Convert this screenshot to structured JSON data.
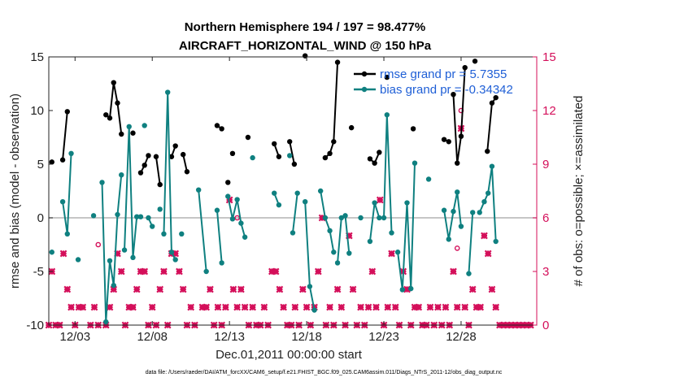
{
  "colors": {
    "rmse": "#000000",
    "bias": "#0f8080",
    "obs": "#d40f5a",
    "zero_line": "#b3b3b3",
    "legend_text": "#1f5fd6"
  },
  "chart_data": {
    "type": "line",
    "title": "Northern Hemisphere 194 / 197 = 98.477%",
    "subtitle": "AIRCRAFT_HORIZONTAL_WIND @ 150 hPa",
    "xlabel": "Dec.01,2011 00:00:00 start",
    "ylabel": "rmse and bias (model - observation)",
    "ylabel_right": "# of obs: o=possible; ×=assimilated",
    "footer": "data file: /Users/raeder/DAI/ATM_forcXX/CAM6_setup/f.e21.FHIST_BGC.f09_025.CAM6assim.011/Diags_NTrS_2011-12/obs_diag_output.nc",
    "xlim": [
      1.3,
      32.9
    ],
    "ylim": [
      -10,
      15
    ],
    "ylim_right": [
      0,
      15
    ],
    "x_ticks": [
      {
        "x": 3,
        "label": "12/03"
      },
      {
        "x": 8,
        "label": "12/08"
      },
      {
        "x": 13,
        "label": "12/13"
      },
      {
        "x": 18,
        "label": "12/18"
      },
      {
        "x": 23,
        "label": "12/23"
      },
      {
        "x": 28,
        "label": "12/28"
      }
    ],
    "y_ticks": [
      -10,
      -5,
      0,
      5,
      10,
      15
    ],
    "y_ticks_right": [
      0,
      3,
      6,
      9,
      12,
      15
    ],
    "legend": [
      {
        "name": "rmse",
        "label": "rmse grand pr = 5.7355"
      },
      {
        "name": "bias",
        "label": "bias grand pr = -0.34342"
      }
    ],
    "series": [
      {
        "name": "rmse",
        "segments": [
          [
            [
              1.5,
              5.2
            ]
          ],
          [
            [
              2.2,
              5.4
            ],
            [
              2.5,
              9.9
            ]
          ],
          [
            [
              5.0,
              9.6
            ],
            [
              5.25,
              9.3
            ],
            [
              5.5,
              12.6
            ],
            [
              5.75,
              10.7
            ],
            [
              6.0,
              7.8
            ]
          ],
          [
            [
              6.75,
              7.9
            ]
          ],
          [
            [
              7.25,
              4.2
            ],
            [
              7.5,
              4.9
            ],
            [
              7.75,
              5.8
            ]
          ],
          [
            [
              8.25,
              5.7
            ],
            [
              8.5,
              3.1
            ]
          ],
          [
            [
              9.25,
              5.7
            ],
            [
              9.5,
              6.7
            ]
          ],
          [
            [
              10.0,
              5.9
            ],
            [
              10.25,
              4.3
            ]
          ],
          [
            [
              12.2,
              8.6
            ],
            [
              12.5,
              8.3
            ]
          ],
          [
            [
              12.9,
              3.3
            ]
          ],
          [
            [
              13.2,
              6.0
            ]
          ],
          [
            [
              14.2,
              7.5
            ]
          ],
          [
            [
              15.9,
              6.9
            ],
            [
              16.2,
              5.7
            ]
          ],
          [
            [
              16.9,
              7.1
            ],
            [
              17.2,
              5.0
            ]
          ],
          [
            [
              17.9,
              15.1
            ]
          ],
          [
            [
              19.2,
              5.6
            ],
            [
              19.5,
              6.0
            ],
            [
              19.75,
              7.1
            ],
            [
              20.0,
              14.5
            ]
          ],
          [
            [
              20.9,
              8.4
            ]
          ],
          [
            [
              22.1,
              5.5
            ],
            [
              22.4,
              5.1
            ],
            [
              22.7,
              6.1
            ]
          ],
          [
            [
              23.2,
              13.1
            ]
          ],
          [
            [
              24.9,
              8.3
            ]
          ],
          [
            [
              26.9,
              7.3
            ],
            [
              27.2,
              7.1
            ]
          ],
          [
            [
              27.5,
              11.5
            ],
            [
              27.75,
              5.1
            ],
            [
              28.0,
              7.6
            ],
            [
              28.25,
              14.0
            ]
          ],
          [
            [
              28.9,
              14.6
            ]
          ],
          [
            [
              29.7,
              6.2
            ],
            [
              30.0,
              10.7
            ],
            [
              30.25,
              11.2
            ]
          ]
        ]
      },
      {
        "name": "bias",
        "segments": [
          [
            [
              1.5,
              -3.2
            ]
          ],
          [
            [
              2.2,
              1.5
            ],
            [
              2.5,
              -1.5
            ],
            [
              2.75,
              6.0
            ]
          ],
          [
            [
              3.2,
              -3.9
            ]
          ],
          [
            [
              4.2,
              0.2
            ]
          ],
          [
            [
              4.75,
              3.3
            ],
            [
              5.0,
              -9.7
            ],
            [
              5.25,
              -4.0
            ],
            [
              5.5,
              -6.3
            ],
            [
              5.75,
              0.3
            ],
            [
              6.0,
              4.0
            ]
          ],
          [
            [
              6.2,
              -3.0
            ],
            [
              6.5,
              8.5
            ],
            [
              6.75,
              -3.7
            ],
            [
              7.0,
              0.1
            ],
            [
              7.25,
              0.1
            ]
          ],
          [
            [
              7.5,
              8.6
            ]
          ],
          [
            [
              7.75,
              0.0
            ],
            [
              8.0,
              -0.8
            ]
          ],
          [
            [
              8.5,
              0.8
            ]
          ],
          [
            [
              8.75,
              -1.5
            ],
            [
              9.0,
              11.7
            ],
            [
              9.25,
              -3.2
            ],
            [
              9.5,
              -3.9
            ]
          ],
          [
            [
              9.9,
              -1.5
            ]
          ],
          [
            [
              11.0,
              2.6
            ],
            [
              11.5,
              -5.0
            ]
          ],
          [
            [
              12.2,
              0.7
            ],
            [
              12.5,
              -4.2
            ]
          ],
          [
            [
              12.9,
              2.0
            ],
            [
              13.2,
              -0.1
            ],
            [
              13.5,
              1.7
            ],
            [
              13.75,
              -0.5
            ],
            [
              14.0,
              -1.8
            ]
          ],
          [
            [
              14.5,
              5.6
            ]
          ],
          [
            [
              15.9,
              2.3
            ],
            [
              16.2,
              1.2
            ]
          ],
          [
            [
              16.9,
              5.8
            ]
          ],
          [
            [
              17.1,
              -1.4
            ],
            [
              17.4,
              2.3
            ]
          ],
          [
            [
              17.9,
              1.5
            ],
            [
              18.2,
              -6.4
            ],
            [
              18.5,
              -8.6
            ]
          ],
          [
            [
              18.9,
              2.5
            ],
            [
              19.2,
              0.0
            ],
            [
              19.5,
              -1.2
            ],
            [
              19.75,
              -3.2
            ]
          ],
          [
            [
              20.0,
              -4.2
            ],
            [
              20.25,
              0.0
            ],
            [
              20.5,
              0.2
            ],
            [
              20.75,
              -3.3
            ]
          ],
          [
            [
              21.5,
              0.0
            ]
          ],
          [
            [
              22.1,
              -2.2
            ],
            [
              22.4,
              1.4
            ],
            [
              22.7,
              0.0
            ],
            [
              23.0,
              0.0
            ],
            [
              23.2,
              9.6
            ],
            [
              23.5,
              -1.4
            ]
          ],
          [
            [
              23.9,
              -3.2
            ],
            [
              24.2,
              -6.7
            ],
            [
              24.5,
              1.4
            ],
            [
              24.75,
              -6.6
            ],
            [
              25.0,
              5.1
            ]
          ],
          [
            [
              25.9,
              3.6
            ]
          ],
          [
            [
              26.9,
              0.7
            ],
            [
              27.2,
              -2.0
            ],
            [
              27.5,
              0.6
            ],
            [
              27.75,
              2.4
            ],
            [
              28.0,
              -0.8
            ]
          ],
          [
            [
              28.5,
              -5.2
            ],
            [
              28.75,
              0.5
            ]
          ],
          [
            [
              29.2,
              0.5
            ],
            [
              29.5,
              1.5
            ],
            [
              29.75,
              2.3
            ],
            [
              30.0,
              4.8
            ],
            [
              30.25,
              -2.2
            ]
          ]
        ]
      }
    ],
    "obs_possible": [
      [
        4.5,
        4.5
      ],
      [
        13.5,
        6.0
      ],
      [
        27.75,
        4.3
      ],
      [
        28.0,
        12.0
      ]
    ],
    "obs_assimilated": [
      [
        1.3,
        0
      ],
      [
        1.5,
        3
      ],
      [
        1.75,
        0
      ],
      [
        2.0,
        0
      ],
      [
        2.25,
        4
      ],
      [
        2.5,
        2
      ],
      [
        2.75,
        1
      ],
      [
        3.0,
        0
      ],
      [
        3.25,
        1
      ],
      [
        3.5,
        1
      ],
      [
        4.0,
        0
      ],
      [
        4.25,
        1
      ],
      [
        4.5,
        0
      ],
      [
        5.0,
        0
      ],
      [
        5.25,
        1
      ],
      [
        5.5,
        2
      ],
      [
        5.75,
        4
      ],
      [
        6.0,
        3
      ],
      [
        6.25,
        0
      ],
      [
        6.5,
        1
      ],
      [
        6.75,
        1
      ],
      [
        7.0,
        2
      ],
      [
        7.25,
        3
      ],
      [
        7.5,
        3
      ],
      [
        7.75,
        0
      ],
      [
        8.0,
        1
      ],
      [
        8.25,
        0
      ],
      [
        8.5,
        2
      ],
      [
        8.75,
        3
      ],
      [
        9.0,
        0
      ],
      [
        9.25,
        4
      ],
      [
        9.5,
        4
      ],
      [
        9.75,
        3
      ],
      [
        10.0,
        2
      ],
      [
        10.25,
        0
      ],
      [
        10.5,
        1
      ],
      [
        10.75,
        0
      ],
      [
        11.25,
        1
      ],
      [
        11.5,
        1
      ],
      [
        11.75,
        2
      ],
      [
        12.0,
        0
      ],
      [
        12.25,
        1
      ],
      [
        12.5,
        0
      ],
      [
        12.75,
        1
      ],
      [
        13.0,
        7
      ],
      [
        13.25,
        2
      ],
      [
        13.5,
        1
      ],
      [
        13.75,
        2
      ],
      [
        14.0,
        1
      ],
      [
        14.25,
        0
      ],
      [
        14.5,
        1
      ],
      [
        14.75,
        0
      ],
      [
        15.0,
        0
      ],
      [
        15.25,
        1
      ],
      [
        15.5,
        0
      ],
      [
        15.75,
        3
      ],
      [
        16.0,
        3
      ],
      [
        16.25,
        2
      ],
      [
        16.5,
        1
      ],
      [
        16.75,
        0
      ],
      [
        17.0,
        0
      ],
      [
        17.25,
        1
      ],
      [
        17.5,
        0
      ],
      [
        17.75,
        2
      ],
      [
        18.0,
        1
      ],
      [
        18.25,
        0
      ],
      [
        18.5,
        1
      ],
      [
        18.75,
        3
      ],
      [
        19.0,
        6
      ],
      [
        19.25,
        0
      ],
      [
        19.5,
        1
      ],
      [
        19.75,
        0
      ],
      [
        20.0,
        2
      ],
      [
        20.25,
        1
      ],
      [
        20.5,
        0
      ],
      [
        20.75,
        5
      ],
      [
        21.0,
        2
      ],
      [
        21.25,
        0
      ],
      [
        21.5,
        1
      ],
      [
        21.75,
        0
      ],
      [
        22.0,
        1
      ],
      [
        22.25,
        3
      ],
      [
        22.5,
        1
      ],
      [
        22.75,
        7
      ],
      [
        23.0,
        0
      ],
      [
        23.25,
        1
      ],
      [
        23.5,
        4
      ],
      [
        23.75,
        1
      ],
      [
        24.0,
        0
      ],
      [
        24.25,
        3
      ],
      [
        24.5,
        2
      ],
      [
        24.75,
        0
      ],
      [
        25.0,
        1
      ],
      [
        25.25,
        1
      ],
      [
        25.5,
        0
      ],
      [
        25.75,
        0
      ],
      [
        26.0,
        1
      ],
      [
        26.25,
        0
      ],
      [
        26.5,
        1
      ],
      [
        26.75,
        0
      ],
      [
        27.0,
        1
      ],
      [
        27.25,
        0
      ],
      [
        27.5,
        3
      ],
      [
        27.75,
        1
      ],
      [
        28.0,
        11
      ],
      [
        28.25,
        1
      ],
      [
        28.5,
        0
      ],
      [
        28.75,
        2
      ],
      [
        29.0,
        1
      ],
      [
        29.25,
        1
      ],
      [
        29.5,
        5
      ],
      [
        29.75,
        4
      ],
      [
        30.0,
        2
      ],
      [
        30.25,
        1
      ],
      [
        30.5,
        0
      ],
      [
        30.75,
        0
      ],
      [
        31.0,
        0
      ],
      [
        31.25,
        0
      ],
      [
        31.5,
        0
      ],
      [
        31.75,
        0
      ],
      [
        32.0,
        0
      ],
      [
        32.25,
        0
      ],
      [
        32.5,
        0
      ]
    ]
  }
}
